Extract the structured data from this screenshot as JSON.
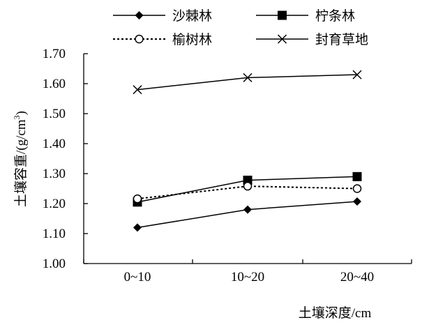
{
  "chart_data": {
    "type": "line",
    "categories": [
      "0~10",
      "10~20",
      "20~40"
    ],
    "series": [
      {
        "name": "沙棘林",
        "values": [
          1.12,
          1.18,
          1.207
        ],
        "marker": "diamond",
        "line": "solid"
      },
      {
        "name": "柠条林",
        "values": [
          1.205,
          1.278,
          1.29
        ],
        "marker": "square",
        "line": "solid"
      },
      {
        "name": "榆树林",
        "values": [
          1.216,
          1.258,
          1.25
        ],
        "marker": "circle",
        "line": "dotted"
      },
      {
        "name": "封育草地",
        "values": [
          1.58,
          1.62,
          1.63
        ],
        "marker": "x",
        "line": "solid"
      }
    ],
    "xlabel": "土壤深度/cm",
    "ylabel": "土壤容重/(g/cm³)",
    "ylabel_parts": {
      "main": "土壤容重/(g/cm",
      "sup": "3",
      "end": ")"
    },
    "ylim": [
      1.0,
      1.7
    ],
    "yticks": [
      "1.00",
      "1.10",
      "1.20",
      "1.30",
      "1.40",
      "1.50",
      "1.60",
      "1.70"
    ],
    "grid": false,
    "legend_position": "top"
  }
}
